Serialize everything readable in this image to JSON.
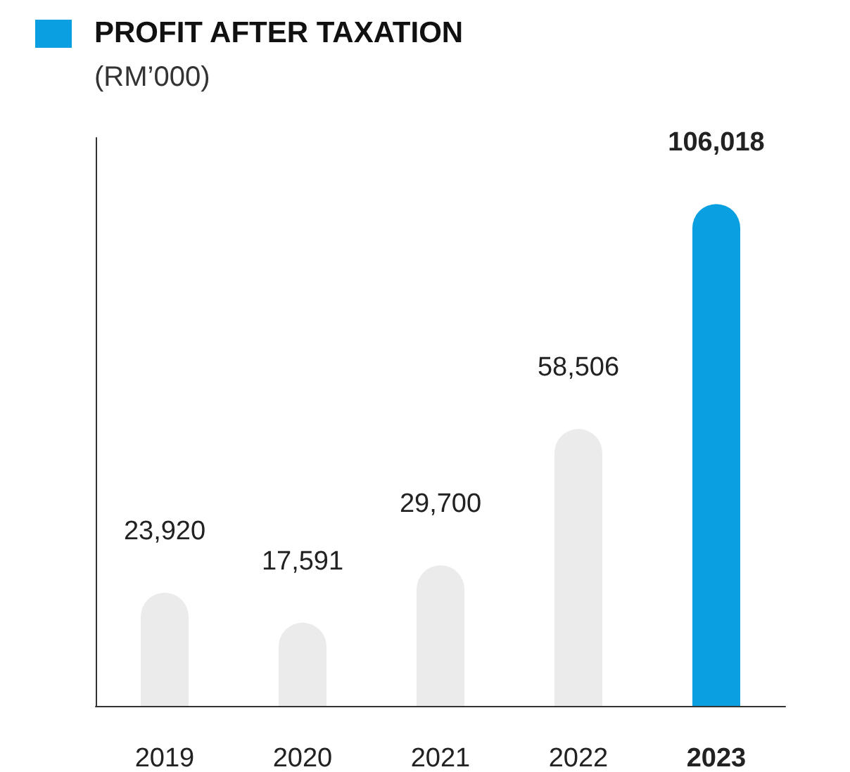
{
  "chart_data": {
    "type": "bar",
    "title": "PROFIT AFTER TAXATION",
    "subtitle": "(RM’000)",
    "categories": [
      "2019",
      "2020",
      "2021",
      "2022",
      "2023"
    ],
    "values": [
      23920,
      17591,
      29700,
      58506,
      106018
    ],
    "colors": [
      "#ebebeb",
      "#ebebeb",
      "#ebebeb",
      "#ebebeb",
      "#0a9fe0"
    ],
    "value_labels": [
      "23,920",
      "17,591",
      "29,700",
      "58,506",
      "106,018"
    ],
    "grid": false
  }
}
